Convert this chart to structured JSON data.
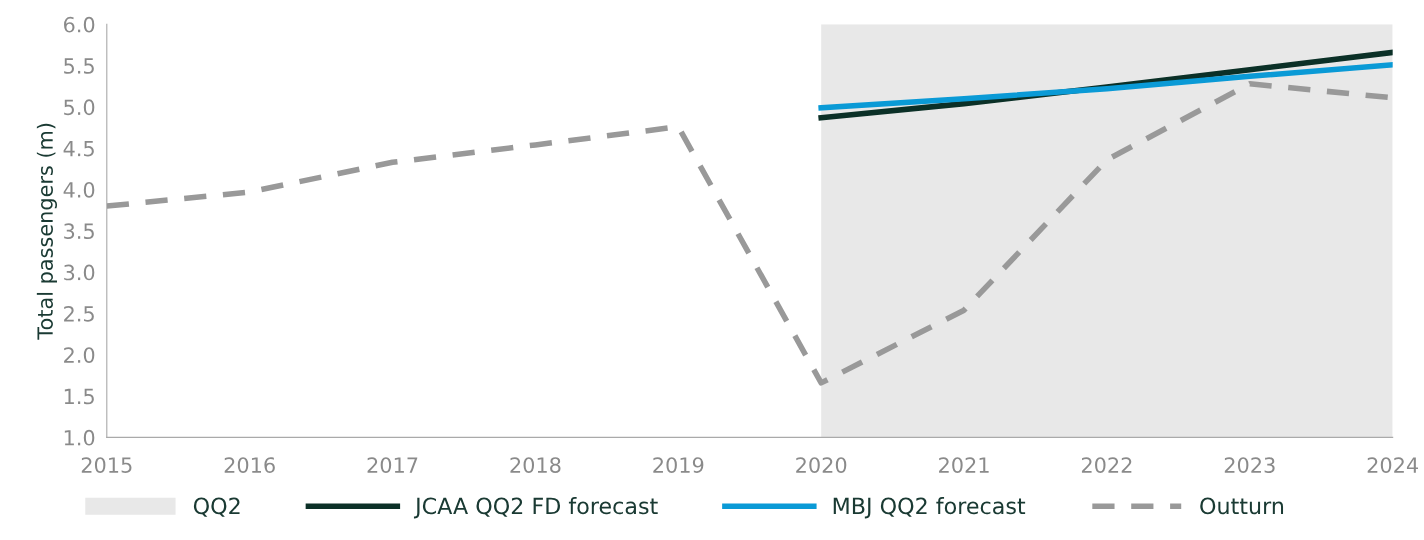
{
  "chart_data": {
    "type": "line",
    "ylabel": "Total passengers (m)",
    "x": [
      2015,
      2016,
      2017,
      2018,
      2019,
      2020,
      2021,
      2022,
      2023,
      2024
    ],
    "xlim": [
      2015,
      2024
    ],
    "xticks": [
      2015,
      2016,
      2017,
      2018,
      2019,
      2020,
      2021,
      2022,
      2023,
      2024
    ],
    "ylim": [
      1,
      6
    ],
    "yticks": [
      {
        "value": 1,
        "label": "1.0"
      },
      {
        "value": 1.5,
        "label": "1.5"
      },
      {
        "value": 2,
        "label": "2.0"
      },
      {
        "value": 2.5,
        "label": "2.5"
      },
      {
        "value": 3,
        "label": "3.0"
      },
      {
        "value": 3.5,
        "label": "3.5"
      },
      {
        "value": 4,
        "label": "4.0"
      },
      {
        "value": 4.5,
        "label": "4.5"
      },
      {
        "value": 5,
        "label": "5.0"
      },
      {
        "value": 5.5,
        "label": "5.5"
      },
      {
        "value": 6,
        "label": "6.0"
      }
    ],
    "bands": [
      {
        "axis": "x",
        "from": 2020,
        "to": 2024,
        "label": "QQ2",
        "color": "#e8e8e8"
      }
    ],
    "series": [
      {
        "name": "JCAA QQ2 FD forecast",
        "color": "#0b3027",
        "line_style": "solid",
        "values": [
          null,
          null,
          null,
          null,
          null,
          4.87,
          5.04,
          5.24,
          5.45,
          5.66
        ]
      },
      {
        "name": "MBJ QQ2 forecast",
        "color": "#0a9ad6",
        "line_style": "solid",
        "values": [
          null,
          null,
          null,
          null,
          null,
          4.99,
          5.1,
          5.22,
          5.37,
          5.51
        ]
      },
      {
        "name": "Outturn",
        "color": "#999999",
        "line_style": "dashed",
        "values": [
          3.8,
          3.97,
          4.33,
          4.54,
          4.76,
          1.66,
          2.54,
          4.36,
          5.28,
          5.11
        ]
      }
    ],
    "grid": false,
    "legend": "bottom",
    "marker": "none"
  }
}
